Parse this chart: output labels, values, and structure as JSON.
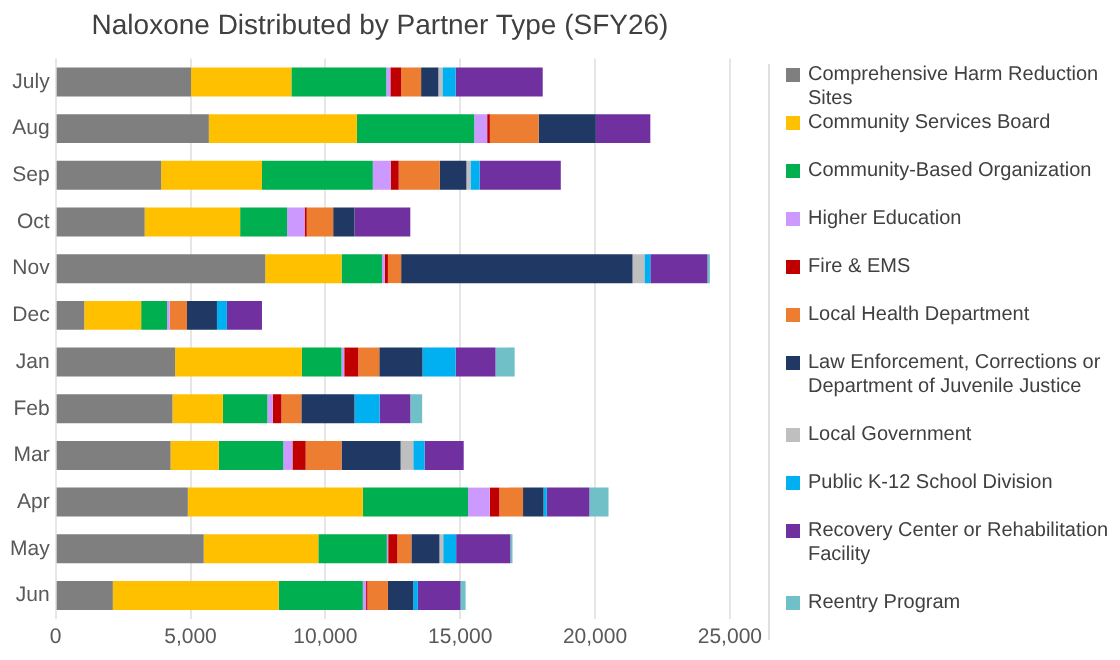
{
  "chart_data": {
    "type": "bar",
    "orientation": "horizontal",
    "stacked": true,
    "title": "Naloxone Distributed by Partner Type (SFY26)",
    "categories": [
      "July",
      "Aug",
      "Sep",
      "Oct",
      "Nov",
      "Dec",
      "Jan",
      "Feb",
      "Mar",
      "Apr",
      "May",
      "Jun"
    ],
    "xlim": [
      0,
      25000
    ],
    "xticks": [
      {
        "value": 0,
        "label": "0"
      },
      {
        "value": 5000,
        "label": "5,000"
      },
      {
        "value": 10000,
        "label": "10,000"
      },
      {
        "value": 15000,
        "label": "15,000"
      },
      {
        "value": 20000,
        "label": "20,000"
      },
      {
        "value": 25000,
        "label": "25,000"
      }
    ],
    "grid": "x",
    "legend": "right",
    "series": [
      {
        "name": "Comprehensive Harm Reduction Sites",
        "color": "#7f7f7f",
        "values": [
          5020,
          5680,
          3910,
          3300,
          7770,
          1060,
          4430,
          4330,
          4260,
          4900,
          5490,
          2120
        ]
      },
      {
        "name": "Community Services Board",
        "color": "#ffc000",
        "values": [
          3720,
          5490,
          3740,
          3540,
          2830,
          2110,
          4700,
          1870,
          1790,
          6490,
          4250,
          6150
        ]
      },
      {
        "name": "Community-Based Organization",
        "color": "#00b050",
        "values": [
          3520,
          4350,
          4110,
          1740,
          1500,
          960,
          1470,
          1650,
          2390,
          3900,
          2540,
          3120
        ]
      },
      {
        "name": "Higher Education",
        "color": "#cc99ff",
        "values": [
          150,
          480,
          660,
          650,
          100,
          100,
          100,
          200,
          340,
          810,
          50,
          120
        ]
      },
      {
        "name": "Fire & EMS",
        "color": "#c00000",
        "values": [
          400,
          100,
          300,
          80,
          120,
          0,
          520,
          320,
          490,
          350,
          340,
          50
        ]
      },
      {
        "name": "Local Health Department",
        "color": "#ed7d31",
        "values": [
          740,
          1810,
          1520,
          980,
          490,
          640,
          780,
          740,
          1330,
          880,
          520,
          760
        ]
      },
      {
        "name": "Law Enforcement, Corrections or Department of Juvenile Justice",
        "color": "#1f3864",
        "values": [
          640,
          2120,
          990,
          790,
          8580,
          1110,
          1600,
          1970,
          2190,
          760,
          1040,
          940
        ]
      },
      {
        "name": "Local Government",
        "color": "#bfbfbf",
        "values": [
          150,
          0,
          150,
          0,
          440,
          0,
          0,
          0,
          470,
          0,
          140,
          0
        ]
      },
      {
        "name": "Public K-12 School Division",
        "color": "#00b0f0",
        "values": [
          490,
          0,
          340,
          0,
          220,
          370,
          1230,
          930,
          420,
          120,
          480,
          170
        ]
      },
      {
        "name": "Recovery Center or Rehabilitation Facility",
        "color": "#7030a0",
        "values": [
          3230,
          2020,
          3010,
          2070,
          2120,
          1300,
          1480,
          1140,
          1450,
          1580,
          2010,
          1580
        ]
      },
      {
        "name": "Reentry Program",
        "color": "#70c0c8",
        "values": [
          0,
          0,
          0,
          0,
          90,
          0,
          710,
          440,
          0,
          710,
          80,
          190
        ]
      }
    ]
  }
}
